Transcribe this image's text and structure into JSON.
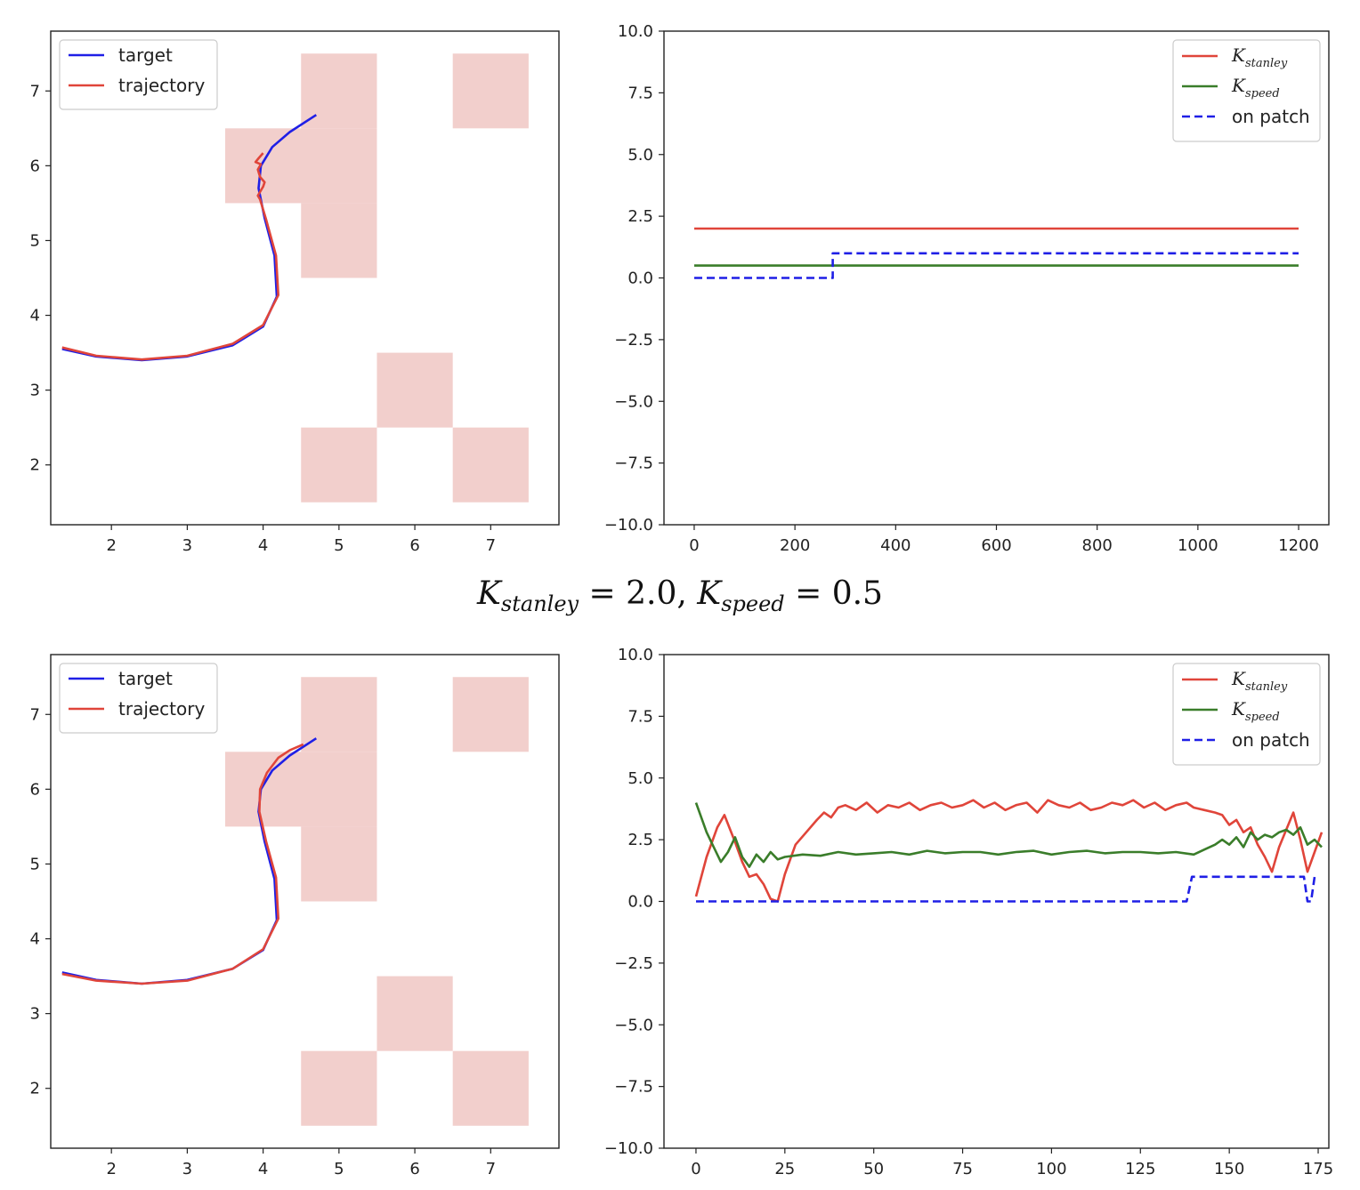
{
  "figure_title": {
    "k1_symbol": "K",
    "k1_sub": "stanley",
    "k1_val": " = 2.0, ",
    "k2_symbol": "K",
    "k2_sub": "speed",
    "k2_val": " = 0.5"
  },
  "colors": {
    "target": "#1f1fe6",
    "trajectory": "#e0453a",
    "k_stanley": "#e0453a",
    "k_speed": "#3a7d2a",
    "on_patch": "#1f1fe6",
    "patch": "#f2cfcc"
  },
  "chart_data": [
    {
      "type": "line",
      "panel": "top-left",
      "xlim": [
        1.2,
        7.9
      ],
      "ylim": [
        1.2,
        7.8
      ],
      "xticks": [
        "2",
        "3",
        "4",
        "5",
        "6",
        "7"
      ],
      "yticks": [
        "2",
        "3",
        "4",
        "5",
        "6",
        "7"
      ],
      "legend": {
        "placement": "upper-left",
        "entries": [
          "target",
          "trajectory"
        ]
      },
      "patches": [
        [
          4.5,
          6.5,
          5.5,
          7.5
        ],
        [
          6.5,
          6.5,
          7.5,
          7.5
        ],
        [
          3.5,
          5.5,
          5.5,
          6.5
        ],
        [
          4.5,
          4.5,
          5.5,
          5.5
        ],
        [
          5.5,
          2.5,
          6.5,
          3.5
        ],
        [
          4.5,
          1.5,
          5.5,
          2.5
        ],
        [
          6.5,
          1.5,
          7.5,
          2.5
        ]
      ],
      "series": [
        {
          "name": "target",
          "x": [
            1.35,
            1.8,
            2.4,
            3.0,
            3.6,
            4.0,
            4.18,
            4.15,
            4.02,
            3.94,
            3.97,
            4.12,
            4.35,
            4.7
          ],
          "y": [
            3.55,
            3.45,
            3.4,
            3.45,
            3.6,
            3.85,
            4.25,
            4.8,
            5.3,
            5.7,
            6.0,
            6.25,
            6.45,
            6.68
          ]
        },
        {
          "name": "trajectory",
          "x": [
            1.35,
            1.8,
            2.4,
            3.0,
            3.6,
            4.0,
            4.2,
            4.17,
            4.04,
            3.96,
            3.93,
            4.0,
            4.02,
            3.96,
            3.93,
            3.97,
            3.9,
            3.94,
            4.0
          ],
          "y": [
            3.57,
            3.46,
            3.41,
            3.46,
            3.62,
            3.87,
            4.27,
            4.8,
            5.28,
            5.55,
            5.6,
            5.72,
            5.78,
            5.85,
            5.95,
            6.02,
            6.05,
            6.1,
            6.17
          ]
        }
      ]
    },
    {
      "type": "line",
      "panel": "top-right",
      "xlim": [
        -60,
        1260
      ],
      "ylim": [
        -10,
        10
      ],
      "xticks": [
        "0",
        "200",
        "400",
        "600",
        "800",
        "1000",
        "1200"
      ],
      "yticks": [
        "10.0",
        "7.5",
        "5.0",
        "2.5",
        "0.0",
        "−2.5",
        "−5.0",
        "−7.5",
        "−10.0"
      ],
      "legend": {
        "placement": "upper-right",
        "entries": [
          "K_stanley",
          "K_speed",
          "on patch"
        ]
      },
      "series": [
        {
          "name": "K_stanley",
          "x": [
            0,
            1200
          ],
          "y": [
            2.0,
            2.0
          ]
        },
        {
          "name": "K_speed",
          "x": [
            0,
            1200
          ],
          "y": [
            0.5,
            0.5
          ]
        },
        {
          "name": "on patch",
          "x": [
            0,
            275,
            275,
            1200
          ],
          "y": [
            0,
            0,
            1,
            1
          ]
        }
      ]
    },
    {
      "type": "line",
      "panel": "bottom-left",
      "xlim": [
        1.2,
        7.9
      ],
      "ylim": [
        1.2,
        7.8
      ],
      "xticks": [
        "2",
        "3",
        "4",
        "5",
        "6",
        "7"
      ],
      "yticks": [
        "2",
        "3",
        "4",
        "5",
        "6",
        "7"
      ],
      "legend": {
        "placement": "upper-left",
        "entries": [
          "target",
          "trajectory"
        ]
      },
      "patches": [
        [
          4.5,
          6.5,
          5.5,
          7.5
        ],
        [
          6.5,
          6.5,
          7.5,
          7.5
        ],
        [
          3.5,
          5.5,
          5.5,
          6.5
        ],
        [
          4.5,
          4.5,
          5.5,
          5.5
        ],
        [
          5.5,
          2.5,
          6.5,
          3.5
        ],
        [
          4.5,
          1.5,
          5.5,
          2.5
        ],
        [
          6.5,
          1.5,
          7.5,
          2.5
        ]
      ],
      "series": [
        {
          "name": "target",
          "x": [
            1.35,
            1.8,
            2.4,
            3.0,
            3.6,
            4.0,
            4.18,
            4.15,
            4.02,
            3.94,
            3.97,
            4.12,
            4.35,
            4.7
          ],
          "y": [
            3.55,
            3.45,
            3.4,
            3.45,
            3.6,
            3.85,
            4.25,
            4.8,
            5.3,
            5.7,
            6.0,
            6.25,
            6.45,
            6.68
          ]
        },
        {
          "name": "trajectory",
          "x": [
            1.35,
            1.5,
            1.8,
            2.4,
            3.0,
            3.6,
            4.0,
            4.2,
            4.17,
            4.04,
            3.95,
            3.96,
            4.05,
            4.2,
            4.35,
            4.53
          ],
          "y": [
            3.53,
            3.5,
            3.44,
            3.4,
            3.44,
            3.6,
            3.86,
            4.27,
            4.82,
            5.3,
            5.7,
            6.0,
            6.22,
            6.42,
            6.52,
            6.6
          ]
        }
      ]
    },
    {
      "type": "line",
      "panel": "bottom-right",
      "xlim": [
        -9,
        178
      ],
      "ylim": [
        -10,
        10
      ],
      "xticks": [
        "0",
        "25",
        "50",
        "75",
        "100",
        "125",
        "150",
        "175"
      ],
      "yticks": [
        "10.0",
        "7.5",
        "5.0",
        "2.5",
        "0.0",
        "−2.5",
        "−5.0",
        "−7.5",
        "−10.0"
      ],
      "legend": {
        "placement": "upper-right",
        "entries": [
          "K_stanley",
          "K_speed",
          "on patch"
        ]
      },
      "series": [
        {
          "name": "K_stanley",
          "x": [
            0,
            3,
            6,
            8,
            11,
            13,
            15,
            17,
            19,
            21,
            23,
            25,
            28,
            31,
            34,
            36,
            38,
            40,
            42,
            45,
            48,
            51,
            54,
            57,
            60,
            63,
            66,
            69,
            72,
            75,
            78,
            81,
            84,
            87,
            90,
            93,
            96,
            99,
            102,
            105,
            108,
            111,
            114,
            117,
            120,
            123,
            126,
            129,
            132,
            135,
            138,
            140,
            143,
            146,
            148,
            150,
            152,
            154,
            156,
            158,
            160,
            162,
            164,
            166,
            168,
            170,
            172,
            174,
            176
          ],
          "y": [
            0.2,
            1.8,
            3.0,
            3.5,
            2.4,
            1.6,
            1.0,
            1.1,
            0.7,
            0.1,
            0.0,
            1.1,
            2.3,
            2.8,
            3.3,
            3.6,
            3.4,
            3.8,
            3.9,
            3.7,
            4.0,
            3.6,
            3.9,
            3.8,
            4.0,
            3.7,
            3.9,
            4.0,
            3.8,
            3.9,
            4.1,
            3.8,
            4.0,
            3.7,
            3.9,
            4.0,
            3.6,
            4.1,
            3.9,
            3.8,
            4.0,
            3.7,
            3.8,
            4.0,
            3.9,
            4.1,
            3.8,
            4.0,
            3.7,
            3.9,
            4.0,
            3.8,
            3.7,
            3.6,
            3.5,
            3.1,
            3.3,
            2.8,
            3.0,
            2.3,
            1.8,
            1.2,
            2.2,
            2.9,
            3.6,
            2.5,
            1.2,
            2.0,
            2.8
          ]
        },
        {
          "name": "K_speed",
          "x": [
            0,
            3,
            5,
            7,
            9,
            11,
            13,
            15,
            17,
            19,
            21,
            23,
            25,
            30,
            35,
            40,
            45,
            50,
            55,
            60,
            65,
            70,
            75,
            80,
            85,
            90,
            95,
            100,
            105,
            110,
            115,
            120,
            125,
            130,
            135,
            140,
            143,
            146,
            148,
            150,
            152,
            154,
            156,
            158,
            160,
            162,
            164,
            166,
            168,
            170,
            172,
            174,
            176
          ],
          "y": [
            4.0,
            2.8,
            2.2,
            1.6,
            2.0,
            2.6,
            1.8,
            1.4,
            1.9,
            1.6,
            2.0,
            1.7,
            1.8,
            1.9,
            1.85,
            2.0,
            1.9,
            1.95,
            2.0,
            1.9,
            2.05,
            1.95,
            2.0,
            2.0,
            1.9,
            2.0,
            2.05,
            1.9,
            2.0,
            2.05,
            1.95,
            2.0,
            2.0,
            1.95,
            2.0,
            1.9,
            2.1,
            2.3,
            2.5,
            2.3,
            2.6,
            2.2,
            2.8,
            2.5,
            2.7,
            2.6,
            2.8,
            2.9,
            2.7,
            3.0,
            2.3,
            2.5,
            2.2
          ]
        },
        {
          "name": "on patch",
          "x": [
            0,
            138,
            139.5,
            171,
            172,
            173,
            174,
            175
          ],
          "y": [
            0,
            0,
            1,
            1,
            0,
            0,
            1,
            1
          ]
        }
      ]
    }
  ]
}
